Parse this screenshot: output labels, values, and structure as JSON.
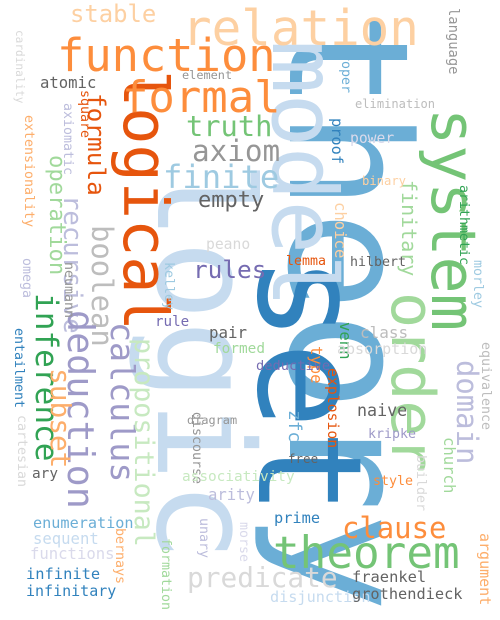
{
  "words": [
    {
      "text": "theory",
      "color": "#6baed6"
    },
    {
      "text": "set",
      "color": "#3182bd"
    },
    {
      "text": "logic",
      "color": "#c6dbef"
    },
    {
      "text": "model",
      "color": "#c6dbef"
    },
    {
      "text": "logical",
      "color": "#e6550d"
    },
    {
      "text": "relation",
      "color": "#fdd0a2"
    },
    {
      "text": "function",
      "color": "#fd8d3c"
    },
    {
      "text": "formal",
      "color": "#fd8d3c"
    },
    {
      "text": "system",
      "color": "#74c476"
    },
    {
      "text": "order",
      "color": "#a1d99b"
    },
    {
      "text": "theorem",
      "color": "#74c476"
    },
    {
      "text": "proof",
      "color": "#3182bd"
    },
    {
      "text": "stable",
      "color": "#fdd0a2"
    },
    {
      "text": "truth",
      "color": "#74c476"
    },
    {
      "text": "axiom",
      "color": "#969696"
    },
    {
      "text": "finite",
      "color": "#9ecae1"
    },
    {
      "text": "empty",
      "color": "#636363"
    },
    {
      "text": "rules",
      "color": "#756bb1"
    },
    {
      "text": "formula",
      "color": "#e6550d"
    },
    {
      "text": "operation",
      "color": "#a1d99b"
    },
    {
      "text": "recursive",
      "color": "#bcbddc"
    },
    {
      "text": "boolean",
      "color": "#bdbdbd"
    },
    {
      "text": "inference",
      "color": "#31a354"
    },
    {
      "text": "deduction",
      "color": "#9e9ac8"
    },
    {
      "text": "calculus",
      "color": "#9e9ac8"
    },
    {
      "text": "subset",
      "color": "#fdae6b"
    },
    {
      "text": "propositional",
      "color": "#c7e9c0"
    },
    {
      "text": "domain",
      "color": "#bcbddc"
    },
    {
      "text": "clause",
      "color": "#fd8d3c"
    },
    {
      "text": "predicate",
      "color": "#d9d9d9"
    },
    {
      "text": "finitary",
      "color": "#a1d99b"
    },
    {
      "text": "cardinality",
      "color": "#d9d9d9"
    },
    {
      "text": "atomic",
      "color": "#636363"
    },
    {
      "text": "element",
      "color": "#969696"
    },
    {
      "text": "language",
      "color": "#969696"
    },
    {
      "text": "proper",
      "color": "#6baed6"
    },
    {
      "text": "elimination",
      "color": "#bdbdbd"
    },
    {
      "text": "square",
      "color": "#e6550d"
    },
    {
      "text": "axiomatic",
      "color": "#bcbddc"
    },
    {
      "text": "extensionality",
      "color": "#fdae6b"
    },
    {
      "text": "power",
      "color": "#dadaeb"
    },
    {
      "text": "binary",
      "color": "#fdd0a2"
    },
    {
      "text": "choice",
      "color": "#fdd0a2"
    },
    {
      "text": "arithmetic",
      "color": "#31a354"
    },
    {
      "text": "peano",
      "color": "#d9d9d9"
    },
    {
      "text": "lemma",
      "color": "#e6550d"
    },
    {
      "text": "hilbert",
      "color": "#636363"
    },
    {
      "text": "kelley",
      "color": "#9ecae1"
    },
    {
      "text": "neumann",
      "color": "#969696"
    },
    {
      "text": "omega",
      "color": "#bcbddc"
    },
    {
      "text": "entailment",
      "color": "#3182bd"
    },
    {
      "text": "rule",
      "color": "#756bb1"
    },
    {
      "text": "pair",
      "color": "#636363"
    },
    {
      "text": "class",
      "color": "#bdbdbd"
    },
    {
      "text": "venn",
      "color": "#31a354"
    },
    {
      "text": "morley",
      "color": "#9ecae1"
    },
    {
      "text": "equivalence",
      "color": "#bdbdbd"
    },
    {
      "text": "formed",
      "color": "#a1d99b"
    },
    {
      "text": "absorption",
      "color": "#d9d9d9"
    },
    {
      "text": "type",
      "color": "#fd8d3c"
    },
    {
      "text": "deductive",
      "color": "#756bb1"
    },
    {
      "text": "explosion",
      "color": "#e6550d"
    },
    {
      "text": "naive",
      "color": "#636363"
    },
    {
      "text": "kripke",
      "color": "#9e9ac8"
    },
    {
      "text": "diagram",
      "color": "#969696"
    },
    {
      "text": "zfc",
      "color": "#6baed6"
    },
    {
      "text": "discourse",
      "color": "#969696"
    },
    {
      "text": "free",
      "color": "#636363"
    },
    {
      "text": "builder",
      "color": "#d9d9d9"
    },
    {
      "text": "church",
      "color": "#a1d99b"
    },
    {
      "text": "cartesian",
      "color": "#d9d9d9"
    },
    {
      "text": "ary",
      "color": "#636363"
    },
    {
      "text": "associativity",
      "color": "#c7e9c0"
    },
    {
      "text": "arity",
      "color": "#bcbddc"
    },
    {
      "text": "style",
      "color": "#fd8d3c"
    },
    {
      "text": "enumeration",
      "color": "#6baed6"
    },
    {
      "text": "sequent",
      "color": "#c6dbef"
    },
    {
      "text": "functions",
      "color": "#dadaeb"
    },
    {
      "text": "prime",
      "color": "#3182bd"
    },
    {
      "text": "unary",
      "color": "#bcbddc"
    },
    {
      "text": "morse",
      "color": "#dadaeb"
    },
    {
      "text": "bernays",
      "color": "#fdae6b"
    },
    {
      "text": "formation",
      "color": "#a1d99b"
    },
    {
      "text": "argument",
      "color": "#fdae6b"
    },
    {
      "text": "infinite",
      "color": "#3182bd"
    },
    {
      "text": "infinitary",
      "color": "#3182bd"
    },
    {
      "text": "fraenkel",
      "color": "#636363"
    },
    {
      "text": "disjunction",
      "color": "#c6dbef"
    },
    {
      "text": "grothendieck",
      "color": "#636363"
    }
  ]
}
